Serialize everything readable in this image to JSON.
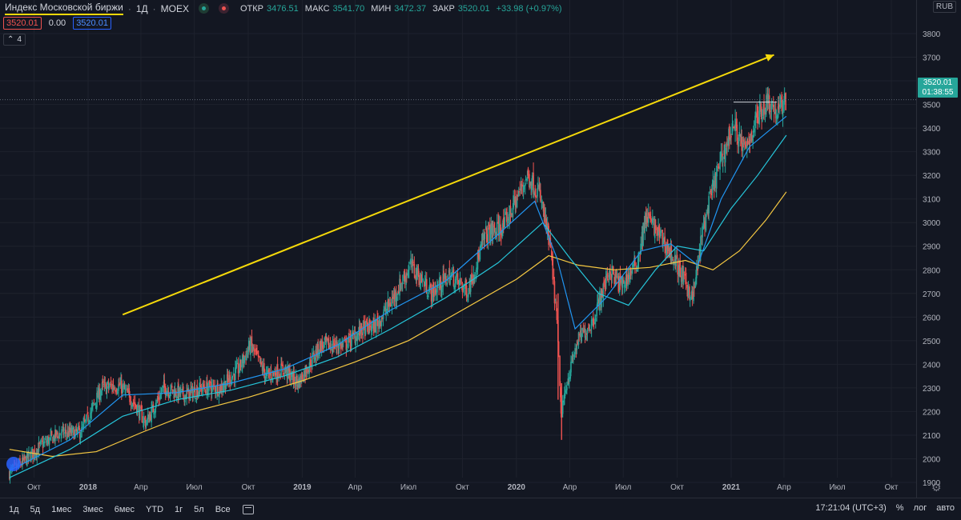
{
  "legend": {
    "symbol": "Индекс Московской биржи",
    "interval": "1Д",
    "exchange": "MOEX",
    "ohlc": [
      {
        "label": "ОТКР",
        "value": "3476.51"
      },
      {
        "label": "МАКС",
        "value": "3541.70"
      },
      {
        "label": "МИН",
        "value": "3472.37"
      },
      {
        "label": "ЗАКР",
        "value": "3520.01"
      }
    ],
    "change": "+33.98 (+0.97%)",
    "ind_values": [
      "3520.01",
      "0.00",
      "3520.01"
    ],
    "indicator_count": "4"
  },
  "currency": "RUB",
  "last_price": {
    "value": "3520.01",
    "countdown": "01:38:55"
  },
  "colors": {
    "background": "#131722",
    "up": "#26a69a",
    "down": "#ef5350",
    "ma_short": "#2196f3",
    "ma_mid": "#26c6da",
    "ma_long": "#f5c842",
    "arrow": "#f5d90a"
  },
  "chart_data": {
    "type": "candlestick",
    "title": "Индекс Московской биржи",
    "ylim": [
      1850,
      3800
    ],
    "y_ticks": [
      1900,
      2000,
      2100,
      2200,
      2300,
      2400,
      2500,
      2600,
      2700,
      2800,
      2900,
      3000,
      3100,
      3200,
      3300,
      3400,
      3500,
      3600,
      3700,
      3800
    ],
    "x_ticks": [
      {
        "label": "Окт",
        "date": "2017-10"
      },
      {
        "label": "2018",
        "date": "2018-01",
        "bold": true
      },
      {
        "label": "Апр",
        "date": "2018-04"
      },
      {
        "label": "Июл",
        "date": "2018-07"
      },
      {
        "label": "Окт",
        "date": "2018-10"
      },
      {
        "label": "2019",
        "date": "2019-01",
        "bold": true
      },
      {
        "label": "Апр",
        "date": "2019-04"
      },
      {
        "label": "Июл",
        "date": "2019-07"
      },
      {
        "label": "Окт",
        "date": "2019-10"
      },
      {
        "label": "2020",
        "date": "2020-01",
        "bold": true
      },
      {
        "label": "Апр",
        "date": "2020-04"
      },
      {
        "label": "Июл",
        "date": "2020-07"
      },
      {
        "label": "Окт",
        "date": "2020-10"
      },
      {
        "label": "2021",
        "date": "2021-01",
        "bold": true
      },
      {
        "label": "Апр",
        "date": "2021-04"
      },
      {
        "label": "Июл",
        "date": "2021-07"
      },
      {
        "label": "Окт",
        "date": "2021-10"
      }
    ],
    "close_series": [
      {
        "date": "2017-08-20",
        "close": 1940
      },
      {
        "date": "2017-09-15",
        "close": 1990
      },
      {
        "date": "2017-10-15",
        "close": 2060
      },
      {
        "date": "2017-11-15",
        "close": 2110
      },
      {
        "date": "2017-12-20",
        "close": 2110
      },
      {
        "date": "2018-01-25",
        "close": 2300
      },
      {
        "date": "2018-02-25",
        "close": 2310
      },
      {
        "date": "2018-03-20",
        "close": 2240
      },
      {
        "date": "2018-04-10",
        "close": 2150
      },
      {
        "date": "2018-05-10",
        "close": 2300
      },
      {
        "date": "2018-06-15",
        "close": 2270
      },
      {
        "date": "2018-07-15",
        "close": 2300
      },
      {
        "date": "2018-08-15",
        "close": 2300
      },
      {
        "date": "2018-09-15",
        "close": 2380
      },
      {
        "date": "2018-10-05",
        "close": 2480
      },
      {
        "date": "2018-11-01",
        "close": 2350
      },
      {
        "date": "2018-12-01",
        "close": 2380
      },
      {
        "date": "2018-12-25",
        "close": 2320
      },
      {
        "date": "2019-02-01",
        "close": 2480
      },
      {
        "date": "2019-03-15",
        "close": 2480
      },
      {
        "date": "2019-04-15",
        "close": 2550
      },
      {
        "date": "2019-05-05",
        "close": 2560
      },
      {
        "date": "2019-06-01",
        "close": 2660
      },
      {
        "date": "2019-07-05",
        "close": 2820
      },
      {
        "date": "2019-08-10",
        "close": 2700
      },
      {
        "date": "2019-09-10",
        "close": 2780
      },
      {
        "date": "2019-10-10",
        "close": 2710
      },
      {
        "date": "2019-11-10",
        "close": 2950
      },
      {
        "date": "2019-12-10",
        "close": 2980
      },
      {
        "date": "2020-01-20",
        "close": 3200
      },
      {
        "date": "2020-02-10",
        "close": 3120
      },
      {
        "date": "2020-02-28",
        "close": 2900
      },
      {
        "date": "2020-03-10",
        "close": 2600
      },
      {
        "date": "2020-03-18",
        "close": 2170
      },
      {
        "date": "2020-03-25",
        "close": 2300
      },
      {
        "date": "2020-04-15",
        "close": 2500
      },
      {
        "date": "2020-05-10",
        "close": 2580
      },
      {
        "date": "2020-06-08",
        "close": 2800
      },
      {
        "date": "2020-06-28",
        "close": 2730
      },
      {
        "date": "2020-07-25",
        "close": 2830
      },
      {
        "date": "2020-08-10",
        "close": 3030
      },
      {
        "date": "2020-09-01",
        "close": 2950
      },
      {
        "date": "2020-09-25",
        "close": 2850
      },
      {
        "date": "2020-10-28",
        "close": 2680
      },
      {
        "date": "2020-11-15",
        "close": 2980
      },
      {
        "date": "2020-12-05",
        "close": 3180
      },
      {
        "date": "2021-01-05",
        "close": 3420
      },
      {
        "date": "2021-01-25",
        "close": 3300
      },
      {
        "date": "2021-02-15",
        "close": 3450
      },
      {
        "date": "2021-03-05",
        "close": 3520
      },
      {
        "date": "2021-03-20",
        "close": 3460
      },
      {
        "date": "2021-04-05",
        "close": 3520
      }
    ],
    "resistance_level": {
      "price": 3510,
      "from": "2021-01-05",
      "to": "2021-03-20"
    },
    "trend_arrow": {
      "from": {
        "date": "2018-03-01",
        "price": 2610
      },
      "to": {
        "date": "2021-03-15",
        "price": 3710
      }
    },
    "ma_short": [
      {
        "date": "2017-08-20",
        "v": 1950
      },
      {
        "date": "2017-12-01",
        "v": 2080
      },
      {
        "date": "2018-03-01",
        "v": 2270
      },
      {
        "date": "2018-06-01",
        "v": 2280
      },
      {
        "date": "2018-09-01",
        "v": 2320
      },
      {
        "date": "2018-12-01",
        "v": 2380
      },
      {
        "date": "2019-03-01",
        "v": 2480
      },
      {
        "date": "2019-06-01",
        "v": 2630
      },
      {
        "date": "2019-09-01",
        "v": 2750
      },
      {
        "date": "2019-12-01",
        "v": 2950
      },
      {
        "date": "2020-02-01",
        "v": 3090
      },
      {
        "date": "2020-03-10",
        "v": 2850
      },
      {
        "date": "2020-04-10",
        "v": 2550
      },
      {
        "date": "2020-06-01",
        "v": 2680
      },
      {
        "date": "2020-08-01",
        "v": 2880
      },
      {
        "date": "2020-09-20",
        "v": 2910
      },
      {
        "date": "2020-11-05",
        "v": 2820
      },
      {
        "date": "2020-12-15",
        "v": 3100
      },
      {
        "date": "2021-02-01",
        "v": 3320
      },
      {
        "date": "2021-04-05",
        "v": 3450
      }
    ],
    "ma_mid": [
      {
        "date": "2017-08-20",
        "v": 1920
      },
      {
        "date": "2017-12-01",
        "v": 2040
      },
      {
        "date": "2018-03-01",
        "v": 2180
      },
      {
        "date": "2018-06-01",
        "v": 2250
      },
      {
        "date": "2018-09-01",
        "v": 2290
      },
      {
        "date": "2018-12-01",
        "v": 2350
      },
      {
        "date": "2019-03-01",
        "v": 2430
      },
      {
        "date": "2019-06-01",
        "v": 2550
      },
      {
        "date": "2019-09-01",
        "v": 2680
      },
      {
        "date": "2019-12-01",
        "v": 2830
      },
      {
        "date": "2020-02-15",
        "v": 3000
      },
      {
        "date": "2020-04-01",
        "v": 2850
      },
      {
        "date": "2020-05-20",
        "v": 2700
      },
      {
        "date": "2020-07-10",
        "v": 2650
      },
      {
        "date": "2020-08-25",
        "v": 2800
      },
      {
        "date": "2020-10-01",
        "v": 2900
      },
      {
        "date": "2020-11-15",
        "v": 2880
      },
      {
        "date": "2021-01-01",
        "v": 3060
      },
      {
        "date": "2021-02-15",
        "v": 3200
      },
      {
        "date": "2021-04-05",
        "v": 3370
      }
    ],
    "ma_long": [
      {
        "date": "2017-08-20",
        "v": 2040
      },
      {
        "date": "2017-11-01",
        "v": 2010
      },
      {
        "date": "2018-01-15",
        "v": 2030
      },
      {
        "date": "2018-04-01",
        "v": 2110
      },
      {
        "date": "2018-07-01",
        "v": 2200
      },
      {
        "date": "2018-10-01",
        "v": 2260
      },
      {
        "date": "2019-01-01",
        "v": 2330
      },
      {
        "date": "2019-04-01",
        "v": 2410
      },
      {
        "date": "2019-07-01",
        "v": 2500
      },
      {
        "date": "2019-10-01",
        "v": 2630
      },
      {
        "date": "2020-01-01",
        "v": 2760
      },
      {
        "date": "2020-02-25",
        "v": 2860
      },
      {
        "date": "2020-04-15",
        "v": 2820
      },
      {
        "date": "2020-06-15",
        "v": 2800
      },
      {
        "date": "2020-08-15",
        "v": 2810
      },
      {
        "date": "2020-10-15",
        "v": 2840
      },
      {
        "date": "2020-12-01",
        "v": 2800
      },
      {
        "date": "2021-01-15",
        "v": 2880
      },
      {
        "date": "2021-03-01",
        "v": 3010
      },
      {
        "date": "2021-04-05",
        "v": 3130
      }
    ]
  },
  "toolbar": {
    "timeframes": [
      "1д",
      "5д",
      "1мес",
      "3мес",
      "6мес",
      "YTD",
      "1г",
      "5л",
      "Все"
    ],
    "clock": "17:21:04 (UTC+3)",
    "percent": "%",
    "log": "лог",
    "auto": "авто"
  }
}
